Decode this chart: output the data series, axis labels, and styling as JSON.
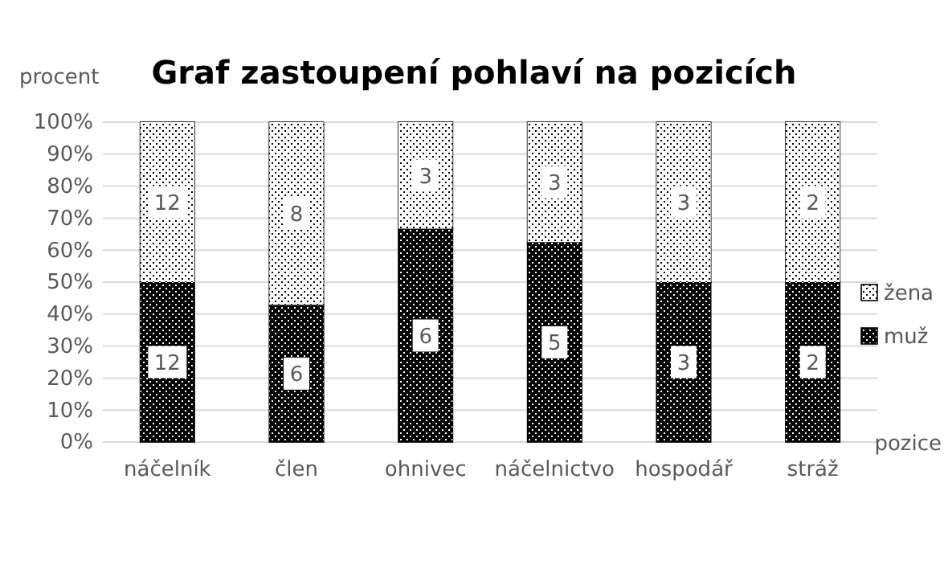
{
  "chart_data": {
    "type": "bar",
    "stacked": true,
    "title": "Graf zastoupení pohlaví na pozicích",
    "xlabel": "pozice",
    "ylabel": "procent",
    "categories": [
      "náčelník",
      "člen",
      "ohnivec",
      "náčelnictvo",
      "hospodář",
      "stráž"
    ],
    "series": [
      {
        "name": "muž",
        "color": "#000000",
        "values": [
          50,
          42.9,
          66.7,
          62.5,
          50,
          50
        ]
      },
      {
        "name": "žena",
        "color": "#ffffff",
        "values": [
          50,
          57.1,
          33.3,
          37.5,
          50,
          50
        ]
      }
    ],
    "annotations": [
      {
        "text": "12",
        "x": "náčelník",
        "y": 25
      },
      {
        "text": "6",
        "x": "člen",
        "y": 21.4
      },
      {
        "text": "6",
        "x": "ohnivec",
        "y": 33.3
      },
      {
        "text": "5",
        "x": "náčelnictvo",
        "y": 31.2
      },
      {
        "text": "3",
        "x": "hospodář",
        "y": 25
      },
      {
        "text": "2",
        "x": "stráž",
        "y": 25
      },
      {
        "text": "12",
        "x": "náčelník",
        "y": 75
      },
      {
        "text": "8",
        "x": "člen",
        "y": 71.4
      },
      {
        "text": "3",
        "x": "ohnivec",
        "y": 83.3
      },
      {
        "text": "3",
        "x": "náčelnictvo",
        "y": 81.2
      },
      {
        "text": "3",
        "x": "hospodář",
        "y": 75
      },
      {
        "text": "2",
        "x": "stráž",
        "y": 75
      }
    ],
    "ylim": [
      0,
      100
    ],
    "yticks": [
      {
        "value": 0,
        "label": "0%"
      },
      {
        "value": 10,
        "label": "10%"
      },
      {
        "value": 20,
        "label": "20%"
      },
      {
        "value": 30,
        "label": "30%"
      },
      {
        "value": 40,
        "label": "40%"
      },
      {
        "value": 50,
        "label": "50%"
      },
      {
        "value": 60,
        "label": "60%"
      },
      {
        "value": 70,
        "label": "70%"
      },
      {
        "value": 80,
        "label": "80%"
      },
      {
        "value": 90,
        "label": "90%"
      },
      {
        "value": 100,
        "label": "100%"
      }
    ],
    "grid": "y",
    "legend": "right"
  }
}
